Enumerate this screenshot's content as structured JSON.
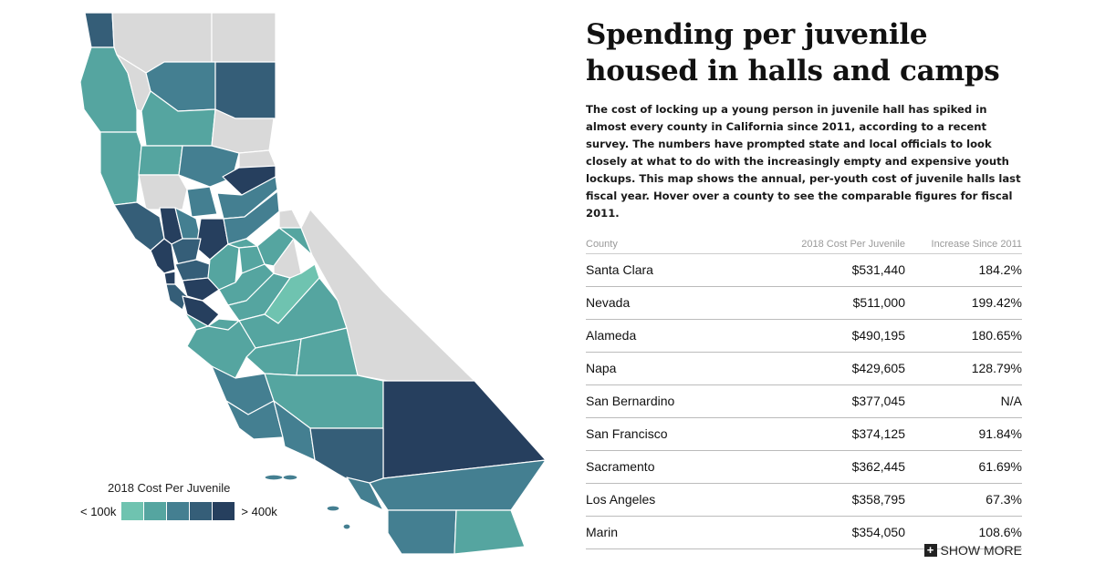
{
  "title": "Spending per juvenile housed in halls and camps",
  "description": "The cost of locking up a young person in juvenile hall has spiked in almost every county in California since 2011, according to a recent survey. The numbers have prompted state and local officials to look closely at what to do with the increasingly empty and expensive youth lockups. This map shows the annual, per-youth cost of juvenile halls last fiscal year. Hover over a county to see the comparable figures for fiscal 2011.",
  "table": {
    "headers": [
      "County",
      "2018 Cost Per Juvenile",
      "Increase Since 2011"
    ],
    "rows": [
      {
        "county": "Santa Clara",
        "cost": "$531,440",
        "increase": "184.2%"
      },
      {
        "county": "Nevada",
        "cost": "$511,000",
        "increase": "199.42%"
      },
      {
        "county": "Alameda",
        "cost": "$490,195",
        "increase": "180.65%"
      },
      {
        "county": "Napa",
        "cost": "$429,605",
        "increase": "128.79%"
      },
      {
        "county": "San Bernardino",
        "cost": "$377,045",
        "increase": "N/A"
      },
      {
        "county": "San Francisco",
        "cost": "$374,125",
        "increase": "91.84%"
      },
      {
        "county": "Sacramento",
        "cost": "$362,445",
        "increase": "61.69%"
      },
      {
        "county": "Los Angeles",
        "cost": "$358,795",
        "increase": "67.3%"
      },
      {
        "county": "Marin",
        "cost": "$354,050",
        "increase": "108.6%"
      }
    ],
    "show_more_label": "SHOW MORE"
  },
  "legend": {
    "title": "2018 Cost Per Juvenile",
    "low_label": "< 100k",
    "high_label": "> 400k",
    "colors": [
      "#6fc3b0",
      "#55a5a0",
      "#447f91",
      "#355e78",
      "#263f5e"
    ]
  },
  "map": {
    "no_data_color": "#d9d9d9",
    "outline_color": "#ffffff"
  }
}
